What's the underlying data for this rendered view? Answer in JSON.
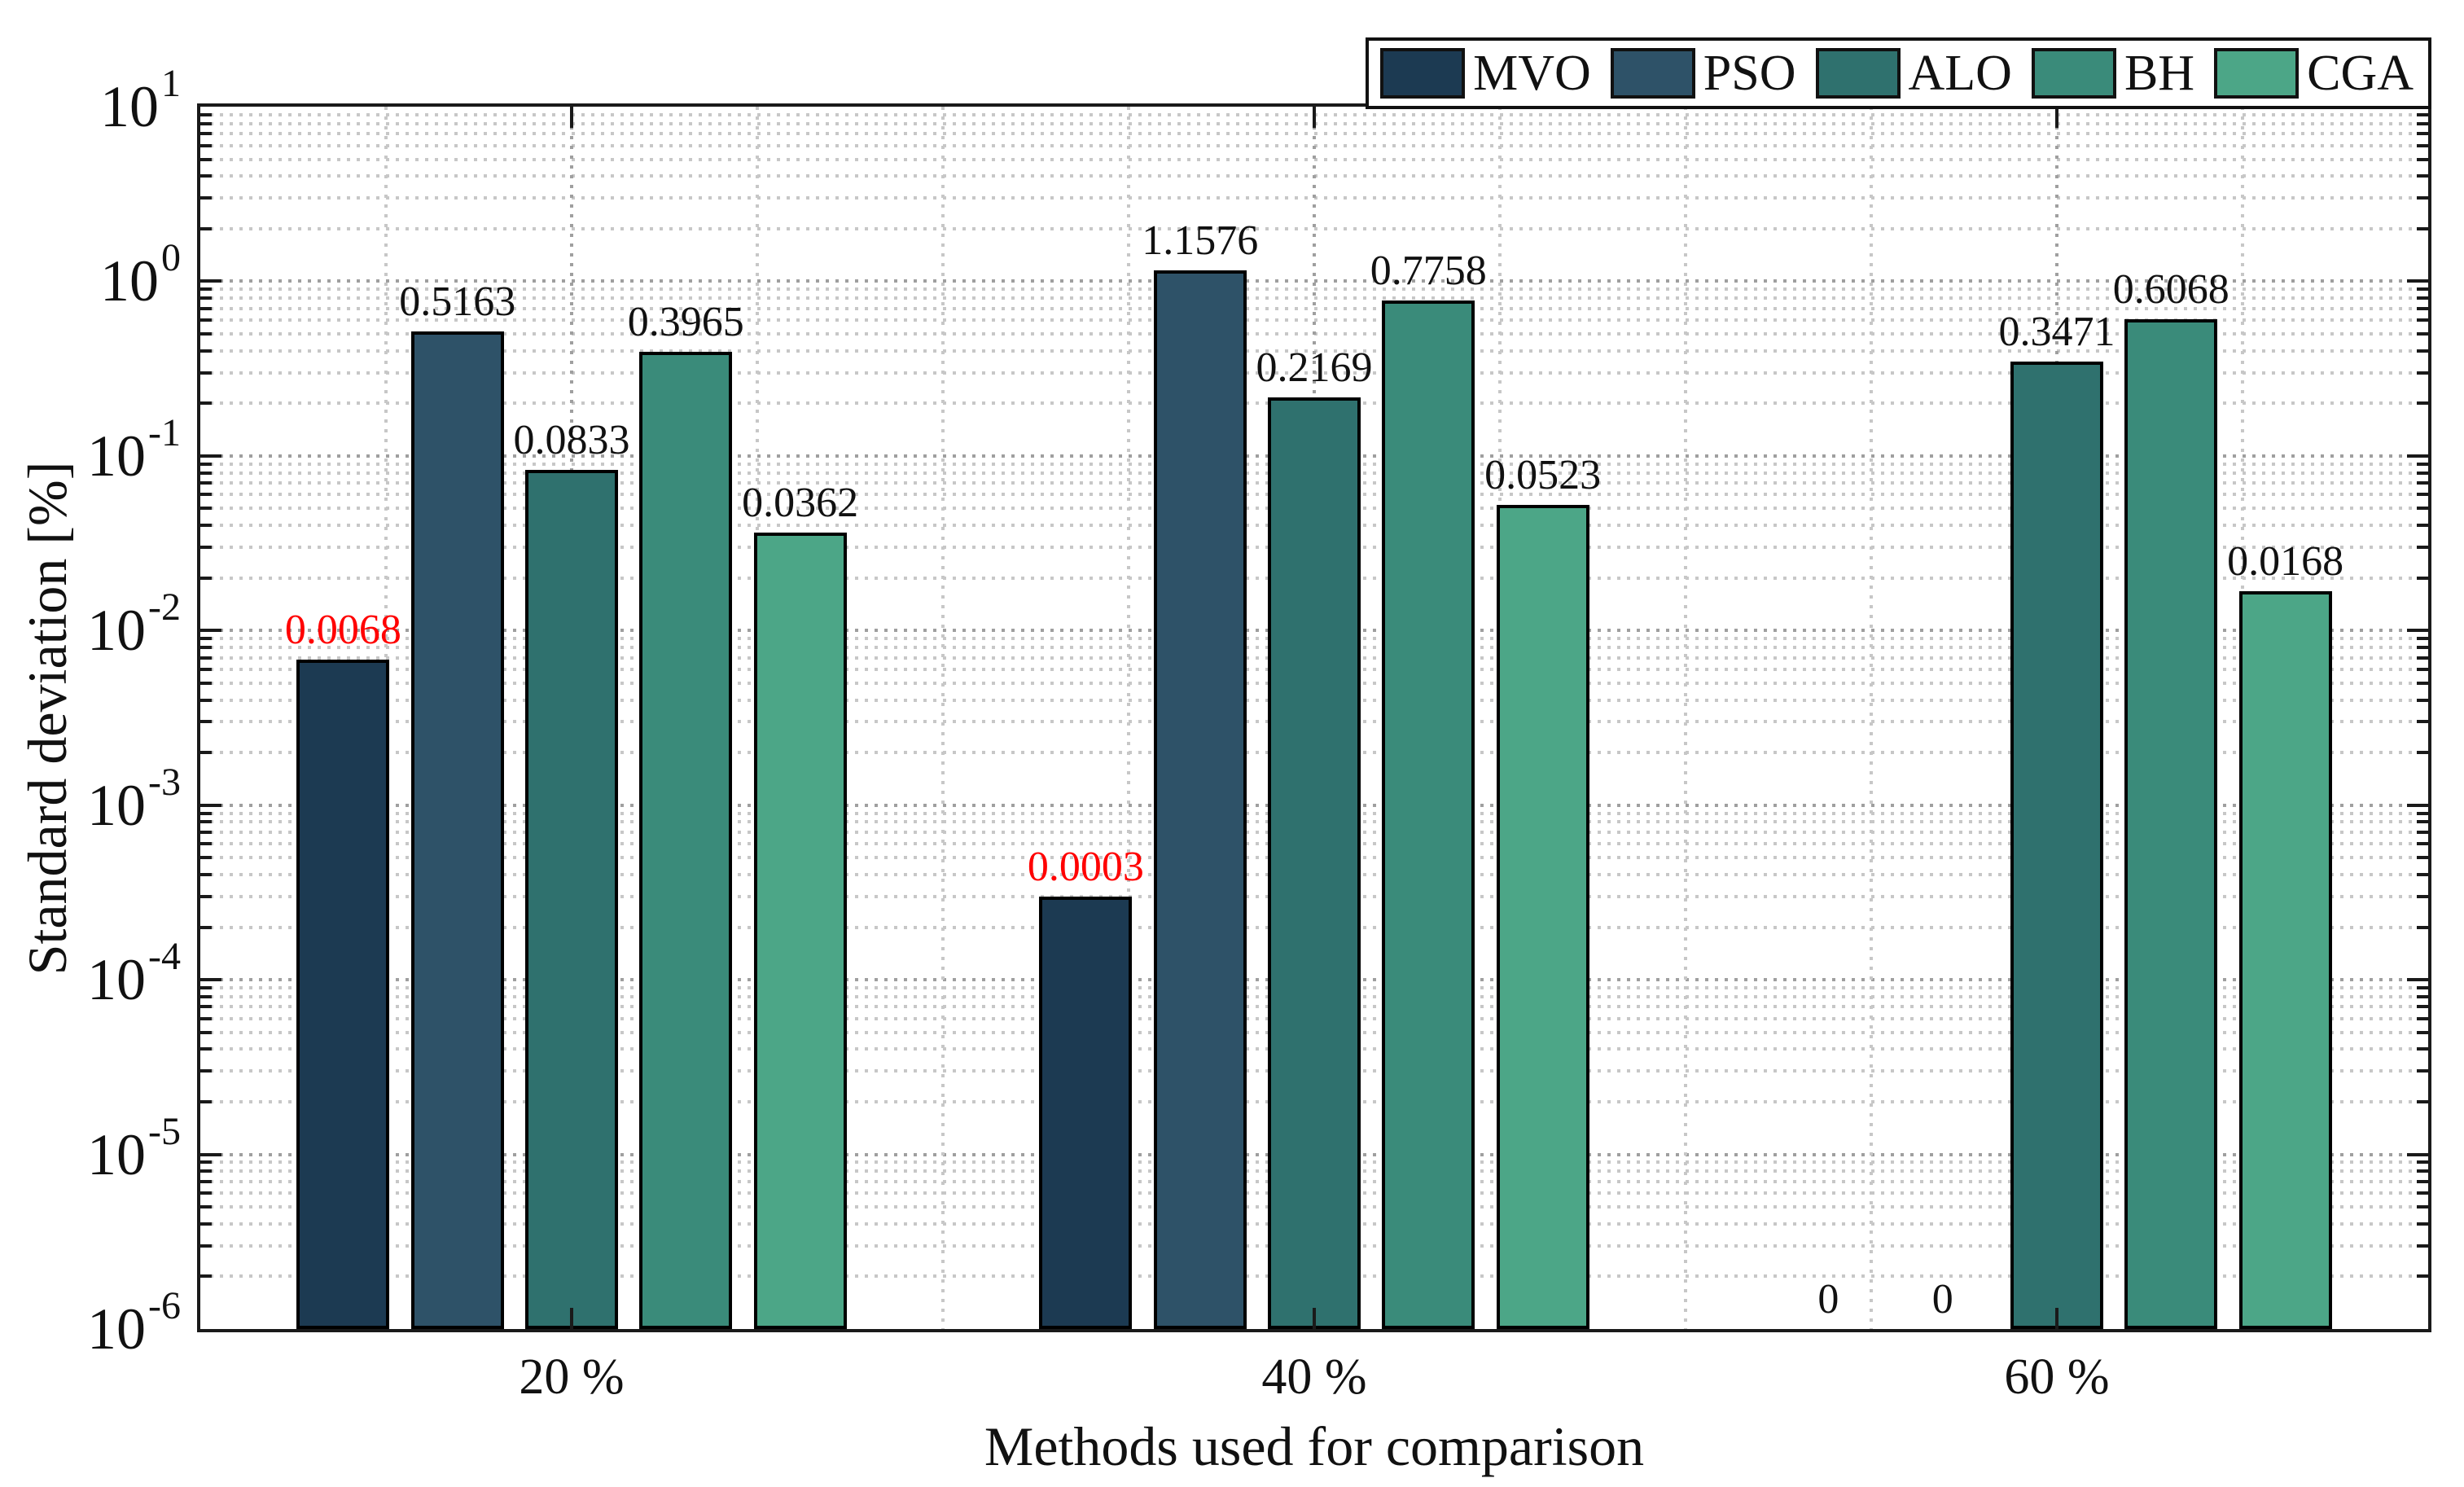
{
  "chart_data": {
    "type": "bar",
    "title": "",
    "xlabel": "Methods used for comparison",
    "ylabel": "Standard deviation [%]",
    "yscale": "log",
    "ylim": [
      1e-06,
      10
    ],
    "xlim": [
      0.5,
      3.5
    ],
    "ytick_exponents": [
      1,
      0,
      -1,
      -2,
      -3,
      -4,
      -5,
      -6
    ],
    "categories": [
      "20 %",
      "40 %",
      "60 %"
    ],
    "series": [
      {
        "name": "MVO",
        "color": "#1c3a52",
        "values": [
          0.0068,
          0.0003,
          0
        ],
        "labels": [
          "0.0068",
          "0.0003",
          "0"
        ],
        "label_colors": [
          "#ff0000",
          "#ff0000",
          "#111111"
        ]
      },
      {
        "name": "PSO",
        "color": "#2e5268",
        "values": [
          0.5163,
          1.1576,
          0
        ],
        "labels": [
          "0.5163",
          "1.1576",
          "0"
        ],
        "label_colors": [
          "#111111",
          "#111111",
          "#111111"
        ]
      },
      {
        "name": "ALO",
        "color": "#2f716e",
        "values": [
          0.0833,
          0.2169,
          0.3471
        ],
        "labels": [
          "0.0833",
          "0.2169",
          "0.3471"
        ],
        "label_colors": [
          "#111111",
          "#111111",
          "#111111"
        ]
      },
      {
        "name": "BH",
        "color": "#3a8b7a",
        "values": [
          0.3965,
          0.7758,
          0.6068
        ],
        "labels": [
          "0.3965",
          "0.7758",
          "0.6068"
        ],
        "label_colors": [
          "#111111",
          "#111111",
          "#111111"
        ]
      },
      {
        "name": "CGA",
        "color": "#4ca687",
        "values": [
          0.0362,
          0.0523,
          0.0168
        ],
        "labels": [
          "0.0362",
          "0.0523",
          "0.0168"
        ],
        "label_colors": [
          "#111111",
          "#111111",
          "#111111"
        ]
      }
    ],
    "legend": {
      "position": "top-right",
      "entries": [
        "MVO",
        "PSO",
        "ALO",
        "BH",
        "CGA"
      ]
    },
    "grid": {
      "major": true,
      "minor": true,
      "line_style": "dotted",
      "major_color": "#9f9f9f",
      "minor_color": "#c7c7c7"
    },
    "bar_edge_color": "#000000",
    "highlight_color": "#ff0000",
    "axis_color": "#1a1a1a"
  }
}
